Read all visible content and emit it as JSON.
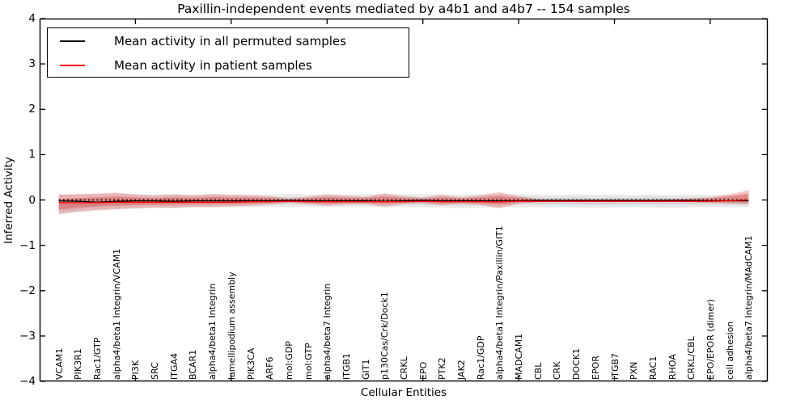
{
  "title": "Paxillin-independent events mediated by a4b1 and a4b7 -- 154 samples",
  "legend": {
    "items": [
      {
        "label": "Mean activity in all permuted samples",
        "color": "#000000"
      },
      {
        "label": "Mean activity in patient samples",
        "color": "#ff0000"
      }
    ]
  },
  "axes": {
    "ylabel": "Inferred Activity",
    "xlabel": "Cellular Entities",
    "ytick_labels": [
      "4",
      "3",
      "2",
      "1",
      "0",
      "−1",
      "−2",
      "−3",
      "−4"
    ]
  },
  "colors": {
    "frame": "#000000",
    "permuted_line": "#000000",
    "patient_line": "#ff0000",
    "permuted_band": "#787878",
    "patient_band": "#e23d3d",
    "background": "#ffffff"
  },
  "chart_data": {
    "type": "line",
    "title": "Paxillin-independent events mediated by a4b1 and a4b7 -- 154 samples",
    "xlabel": "Cellular Entities",
    "ylabel": "Inferred Activity",
    "ylim": [
      -4,
      4
    ],
    "xlim": [
      0,
      38
    ],
    "grid": false,
    "legend_position": "upper left",
    "ytick_values": [
      4,
      3,
      2,
      1,
      0,
      -1,
      -2,
      -3,
      -4
    ],
    "xtick_values": [
      5,
      10,
      15,
      20,
      25,
      30,
      35
    ],
    "entities": [
      "VCAM1",
      "PIK3R1",
      "Rac1/GTP",
      "alpha4/beta1 Integrin/VCAM1",
      "PI3K",
      "SRC",
      "ITGA4",
      "BCAR1",
      "alpha4/beta1 Integrin",
      "lamellipodium assembly",
      "PIK3CA",
      "ARF6",
      "mol:GDP",
      "mol:GTP",
      "alpha4/beta7 Integrin",
      "ITGB1",
      "GIT1",
      "p130Cas/Crk/Dock1",
      "CRKL",
      "EPO",
      "PTK2",
      "JAK2",
      "Rac1/GDP",
      "alpha4/beta1 Integrin/Paxillin/GIT1",
      "MADCAM1",
      "CBL",
      "CRK",
      "DOCK1",
      "EPOR",
      "ITGB7",
      "PXN",
      "RAC1",
      "RHOA",
      "CRKL/CBL",
      "EPO/EPOR (dimer)",
      "cell adhesion",
      "alpha4/beta7 Integrin/MAdCAM1"
    ],
    "series": [
      {
        "name": "Mean activity in all permuted samples",
        "color": "#000000",
        "values": [
          -0.02,
          -0.03,
          -0.05,
          -0.03,
          -0.02,
          -0.02,
          -0.03,
          -0.02,
          -0.02,
          -0.02,
          -0.02,
          -0.02,
          -0.01,
          -0.02,
          -0.02,
          -0.02,
          -0.02,
          -0.03,
          -0.02,
          -0.01,
          -0.02,
          -0.02,
          -0.02,
          -0.02,
          -0.02,
          -0.01,
          -0.01,
          -0.01,
          -0.01,
          -0.01,
          -0.01,
          -0.01,
          -0.01,
          -0.01,
          -0.02,
          -0.02,
          -0.02
        ]
      },
      {
        "name": "Mean activity in patient samples",
        "color": "#ff0000",
        "values": [
          -0.06,
          -0.06,
          -0.06,
          -0.05,
          -0.05,
          -0.05,
          -0.05,
          -0.05,
          -0.05,
          -0.05,
          -0.04,
          -0.04,
          -0.03,
          -0.04,
          -0.04,
          -0.04,
          -0.04,
          -0.04,
          -0.04,
          -0.03,
          -0.04,
          -0.04,
          -0.04,
          -0.04,
          -0.03,
          -0.03,
          -0.03,
          -0.03,
          -0.03,
          -0.03,
          -0.03,
          -0.03,
          -0.03,
          -0.03,
          -0.03,
          -0.02,
          0.0
        ]
      }
    ],
    "zero_reference": 0.0,
    "bands": {
      "permuted": {
        "upper": [
          0.12,
          0.12,
          0.13,
          0.14,
          0.13,
          0.12,
          0.13,
          0.12,
          0.13,
          0.12,
          0.13,
          0.12,
          0.13,
          0.12,
          0.13,
          0.12,
          0.13,
          0.12,
          0.13,
          0.12,
          0.13,
          0.12,
          0.13,
          0.12,
          0.13,
          0.12,
          0.11,
          0.12,
          0.11,
          0.12,
          0.11,
          0.12,
          0.11,
          0.12,
          0.11,
          0.12,
          0.11
        ],
        "lower": [
          -0.33,
          -0.28,
          -0.24,
          -0.21,
          -0.19,
          -0.18,
          -0.18,
          -0.17,
          -0.17,
          -0.16,
          -0.16,
          -0.15,
          -0.16,
          -0.15,
          -0.16,
          -0.15,
          -0.15,
          -0.16,
          -0.15,
          -0.16,
          -0.17,
          -0.18,
          -0.17,
          -0.16,
          -0.15,
          -0.16,
          -0.15,
          -0.16,
          -0.17,
          -0.16,
          -0.15,
          -0.16,
          -0.17,
          -0.16,
          -0.15,
          -0.16,
          -0.15
        ]
      },
      "patient": {
        "upper": [
          0.12,
          0.13,
          0.14,
          0.16,
          0.12,
          0.1,
          0.12,
          0.1,
          0.13,
          0.11,
          0.1,
          0.08,
          0.03,
          0.07,
          0.12,
          0.09,
          0.07,
          0.15,
          0.08,
          0.05,
          0.11,
          0.06,
          0.1,
          0.17,
          0.08,
          0.02,
          0.01,
          0.01,
          0.01,
          0.01,
          0.01,
          0.01,
          0.02,
          0.03,
          0.06,
          0.12,
          0.22
        ],
        "lower": [
          -0.3,
          -0.25,
          -0.22,
          -0.2,
          -0.18,
          -0.16,
          -0.17,
          -0.15,
          -0.15,
          -0.14,
          -0.13,
          -0.1,
          -0.06,
          -0.09,
          -0.13,
          -0.1,
          -0.09,
          -0.15,
          -0.09,
          -0.07,
          -0.12,
          -0.08,
          -0.11,
          -0.18,
          -0.08,
          -0.05,
          -0.04,
          -0.04,
          -0.04,
          -0.04,
          -0.04,
          -0.04,
          -0.04,
          -0.05,
          -0.06,
          -0.08,
          -0.1
        ]
      }
    }
  }
}
